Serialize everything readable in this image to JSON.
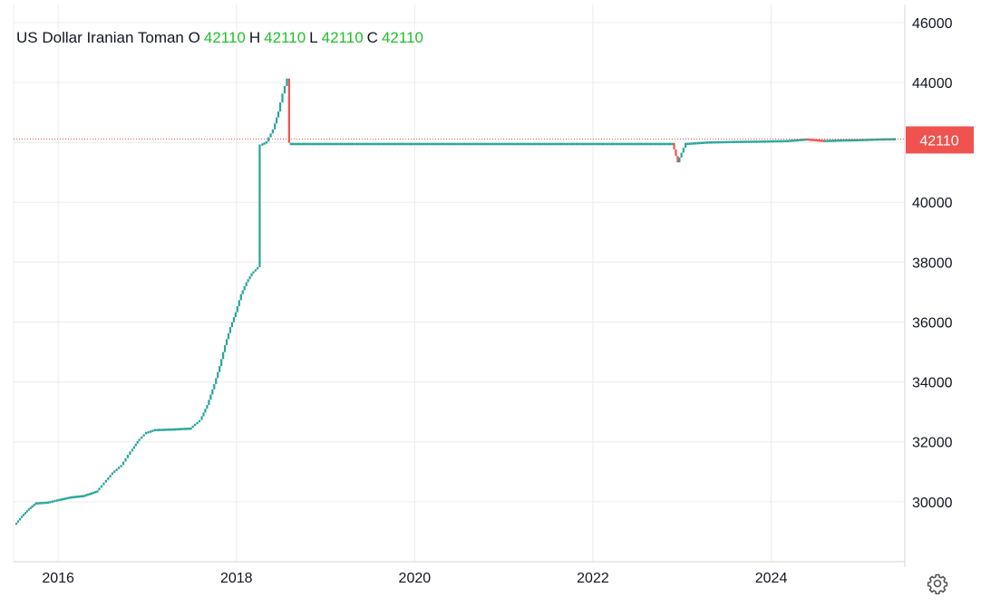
{
  "legend": {
    "symbol": "US Dollar Iranian Toman",
    "o_label": "O",
    "o_value": "42110",
    "h_label": "H",
    "h_value": "42110",
    "l_label": "L",
    "l_value": "42110",
    "c_label": "C",
    "c_value": "42110"
  },
  "price_tag": "42110",
  "colors": {
    "up": "#26a69a",
    "down": "#ef5350",
    "legend_value": "#22c02a",
    "grid": "#ececec",
    "text": "#131722",
    "tag_bg": "#ef5350"
  },
  "settings_icon": "gear-icon",
  "chart_data": {
    "type": "candlestick",
    "title": "US Dollar Iranian Toman",
    "xlabel": "",
    "ylabel": "",
    "x_ticks": [
      "2016",
      "2018",
      "2020",
      "2022",
      "2024"
    ],
    "y_ticks": [
      30000,
      32000,
      34000,
      36000,
      38000,
      40000,
      42000,
      44000,
      46000
    ],
    "xlim": [
      2015.5,
      2025.5
    ],
    "ylim": [
      28000,
      46600
    ],
    "grid": true,
    "last_price": 42110,
    "series": [
      {
        "points": [
          [
            2015.52,
            29200
          ],
          [
            2015.6,
            29500
          ],
          [
            2015.68,
            29750
          ],
          [
            2015.76,
            29950
          ],
          [
            2015.9,
            29980
          ],
          [
            2016.0,
            30050
          ],
          [
            2016.15,
            30150
          ],
          [
            2016.3,
            30200
          ],
          [
            2016.45,
            30350
          ],
          [
            2016.55,
            30700
          ],
          [
            2016.62,
            30950
          ],
          [
            2016.72,
            31200
          ],
          [
            2016.82,
            31650
          ],
          [
            2016.9,
            32000
          ],
          [
            2017.0,
            32300
          ],
          [
            2017.1,
            32400
          ],
          [
            2017.3,
            32420
          ],
          [
            2017.5,
            32450
          ],
          [
            2017.6,
            32700
          ],
          [
            2017.68,
            33200
          ],
          [
            2017.76,
            33900
          ],
          [
            2017.82,
            34500
          ],
          [
            2017.88,
            35200
          ],
          [
            2017.94,
            35800
          ],
          [
            2018.0,
            36300
          ],
          [
            2018.06,
            36900
          ],
          [
            2018.12,
            37300
          ],
          [
            2018.18,
            37600
          ],
          [
            2018.25,
            37800
          ],
          [
            2018.28,
            41900
          ],
          [
            2018.35,
            42000
          ],
          [
            2018.42,
            42400
          ],
          [
            2018.48,
            43000
          ],
          [
            2018.53,
            43600
          ],
          [
            2018.58,
            44100
          ],
          [
            2018.6,
            41950
          ],
          [
            2019.0,
            41950
          ],
          [
            2020.0,
            41950
          ],
          [
            2021.0,
            41950
          ],
          [
            2022.0,
            41950
          ],
          [
            2022.9,
            41950
          ],
          [
            2022.96,
            41300
          ],
          [
            2023.05,
            41950
          ],
          [
            2023.3,
            42000
          ],
          [
            2023.6,
            42020
          ],
          [
            2023.9,
            42030
          ],
          [
            2024.2,
            42050
          ],
          [
            2024.4,
            42100
          ],
          [
            2024.6,
            42050
          ],
          [
            2024.8,
            42070
          ],
          [
            2025.0,
            42080
          ],
          [
            2025.2,
            42100
          ],
          [
            2025.4,
            42110
          ]
        ]
      }
    ]
  }
}
